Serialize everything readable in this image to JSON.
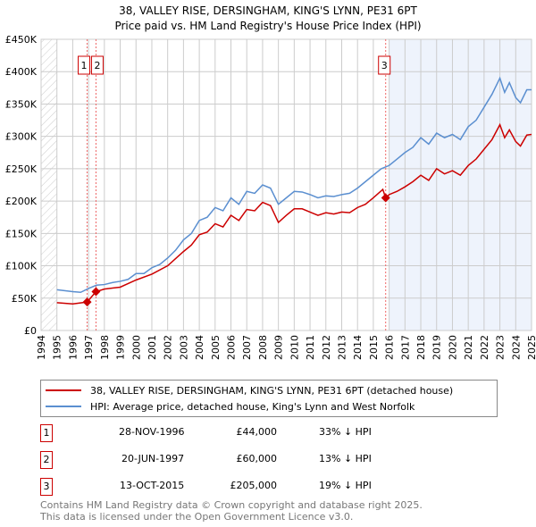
{
  "chart_data": {
    "type": "line",
    "title": "38, VALLEY RISE, DERSINGHAM, KING'S LYNN, PE31 6PT",
    "subtitle": "Price paid vs. HM Land Registry's House Price Index (HPI)",
    "xlim": [
      1994,
      2025
    ],
    "ylim": [
      0,
      450000
    ],
    "x_ticks": [
      "1994",
      "1995",
      "1996",
      "1997",
      "1998",
      "1999",
      "2000",
      "2001",
      "2002",
      "2003",
      "2004",
      "2005",
      "2006",
      "2007",
      "2008",
      "2009",
      "2010",
      "2011",
      "2012",
      "2013",
      "2014",
      "2015",
      "2016",
      "2017",
      "2018",
      "2019",
      "2020",
      "2021",
      "2022",
      "2023",
      "2024",
      "2025"
    ],
    "y_ticks": [
      {
        "v": 0,
        "l": "£0"
      },
      {
        "v": 50000,
        "l": "£50K"
      },
      {
        "v": 100000,
        "l": "£100K"
      },
      {
        "v": 150000,
        "l": "£150K"
      },
      {
        "v": 200000,
        "l": "£200K"
      },
      {
        "v": 250000,
        "l": "£250K"
      },
      {
        "v": 300000,
        "l": "£300K"
      },
      {
        "v": 350000,
        "l": "£350K"
      },
      {
        "v": 400000,
        "l": "£400K"
      },
      {
        "v": 450000,
        "l": "£450K"
      }
    ],
    "grid": true,
    "shaded_from": 2016.0,
    "series": [
      {
        "name": "38, VALLEY RISE, DERSINGHAM, KING'S LYNN, PE31 6PT (detached house)",
        "color": "#cc0000",
        "x": [
          1995,
          1996,
          1996.91,
          1997.47,
          1998,
          1999,
          2000,
          2001,
          2002,
          2003,
          2003.5,
          2004,
          2004.5,
          2005,
          2005.5,
          2006,
          2006.5,
          2007,
          2007.5,
          2008,
          2008.5,
          2009,
          2009.5,
          2010,
          2010.5,
          2011,
          2011.5,
          2012,
          2012.5,
          2013,
          2013.5,
          2014,
          2014.5,
          2015,
          2015.6,
          2015.78,
          2016,
          2016.5,
          2017,
          2017.5,
          2018,
          2018.5,
          2019,
          2019.5,
          2020,
          2020.5,
          2021,
          2021.5,
          2022,
          2022.5,
          2023,
          2023.3,
          2023.6,
          2024,
          2024.3,
          2024.7,
          2025
        ],
        "y": [
          43000,
          41000,
          44000,
          60000,
          64000,
          67000,
          78000,
          87000,
          100000,
          122000,
          132000,
          148000,
          152000,
          165000,
          160000,
          178000,
          170000,
          187000,
          185000,
          198000,
          193000,
          167000,
          178000,
          188000,
          188000,
          183000,
          178000,
          182000,
          180000,
          183000,
          182000,
          190000,
          195000,
          205000,
          218000,
          205000,
          210000,
          215000,
          222000,
          230000,
          240000,
          232000,
          250000,
          242000,
          247000,
          240000,
          255000,
          265000,
          280000,
          295000,
          318000,
          298000,
          310000,
          292000,
          285000,
          302000,
          303000
        ]
      },
      {
        "name": "HPI: Average price, detached house, King's Lynn and West Norfolk",
        "color": "#5b8fd0",
        "x": [
          1995,
          1996,
          1996.5,
          1997,
          1997.5,
          1998,
          1998.5,
          1999,
          1999.5,
          2000,
          2000.5,
          2001,
          2001.5,
          2002,
          2002.5,
          2003,
          2003.5,
          2004,
          2004.5,
          2005,
          2005.5,
          2006,
          2006.5,
          2007,
          2007.5,
          2008,
          2008.5,
          2009,
          2009.5,
          2010,
          2010.5,
          2011,
          2011.5,
          2012,
          2012.5,
          2013,
          2013.5,
          2014,
          2014.5,
          2015,
          2015.5,
          2016,
          2016.5,
          2017,
          2017.5,
          2018,
          2018.5,
          2019,
          2019.5,
          2020,
          2020.5,
          2021,
          2021.5,
          2022,
          2022.5,
          2023,
          2023.3,
          2023.6,
          2024,
          2024.3,
          2024.7,
          2025
        ],
        "y": [
          63000,
          60000,
          59000,
          65000,
          70000,
          71000,
          74000,
          76000,
          79000,
          88000,
          88000,
          97000,
          102000,
          112000,
          124000,
          140000,
          150000,
          170000,
          175000,
          190000,
          185000,
          205000,
          195000,
          215000,
          212000,
          225000,
          220000,
          195000,
          205000,
          215000,
          214000,
          210000,
          205000,
          208000,
          207000,
          210000,
          212000,
          220000,
          230000,
          240000,
          250000,
          255000,
          265000,
          275000,
          283000,
          298000,
          288000,
          305000,
          298000,
          303000,
          295000,
          315000,
          325000,
          345000,
          365000,
          390000,
          368000,
          383000,
          360000,
          352000,
          372000,
          372000
        ]
      }
    ],
    "sales": [
      {
        "label": "1",
        "x": 1996.91,
        "y": 44000,
        "date": "28-NOV-1996",
        "price": "£44,000",
        "hpi": "33% ↓ HPI"
      },
      {
        "label": "2",
        "x": 1997.47,
        "y": 60000,
        "date": "20-JUN-1997",
        "price": "£60,000",
        "hpi": "13% ↓ HPI"
      },
      {
        "label": "3",
        "x": 2015.78,
        "y": 205000,
        "date": "13-OCT-2015",
        "price": "£205,000",
        "hpi": "19% ↓ HPI"
      }
    ]
  },
  "footer": {
    "line1": "Contains HM Land Registry data © Crown copyright and database right 2025.",
    "line2": "This data is licensed under the Open Government Licence v3.0."
  }
}
